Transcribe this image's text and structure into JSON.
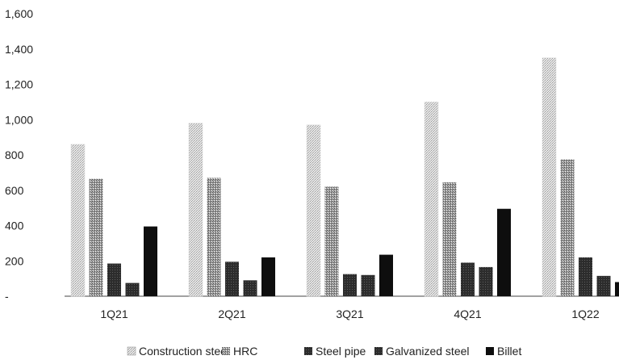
{
  "chart_data": {
    "type": "bar",
    "title": "",
    "xlabel": "",
    "ylabel": "",
    "categories": [
      "1Q21",
      "2Q21",
      "3Q21",
      "4Q21",
      "1Q22"
    ],
    "ylim": [
      0,
      1600
    ],
    "yticks": [
      0,
      200,
      400,
      600,
      800,
      1000,
      1200,
      1400,
      1600
    ],
    "ytick_labels": [
      "-",
      "200",
      "400",
      "600",
      "800",
      "1,000",
      "1,200",
      "1,400",
      "1,600"
    ],
    "grid": false,
    "legend_position": "bottom",
    "series": [
      {
        "name": "Construction steel",
        "values": [
          860,
          980,
          970,
          1100,
          1350
        ],
        "color": "#d0d0d0",
        "pattern": "light-dots"
      },
      {
        "name": "HRC",
        "values": [
          665,
          670,
          620,
          645,
          775
        ],
        "color": "#8a8a8a",
        "pattern": "medium-dots"
      },
      {
        "name": "Steel pipe",
        "values": [
          185,
          195,
          125,
          190,
          220
        ],
        "color": "#3c3c3c",
        "pattern": "dark"
      },
      {
        "name": "Galvanized steel",
        "values": [
          75,
          90,
          120,
          165,
          115
        ],
        "color": "#2a2a2a",
        "pattern": "dark"
      },
      {
        "name": "Billet",
        "values": [
          395,
          220,
          235,
          495,
          80
        ],
        "color": "#111111",
        "pattern": "solid"
      }
    ]
  }
}
